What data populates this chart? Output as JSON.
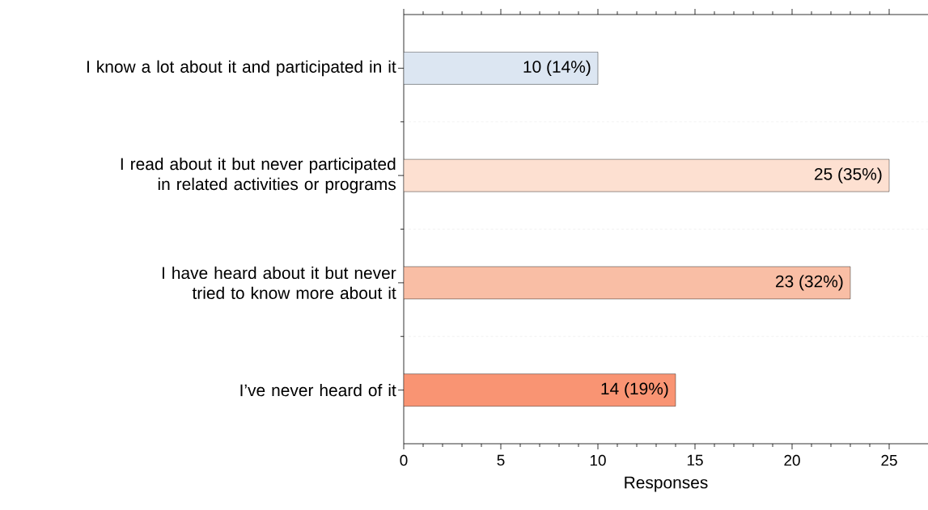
{
  "chart_data": {
    "type": "bar",
    "orientation": "horizontal",
    "xlabel": "Responses",
    "categories": [
      "I know a lot about it and participated in it",
      "I read about it but never participated in related activities or programs",
      "I have heard about it but never tried to know more about it",
      "I’ve never heard of it"
    ],
    "values": [
      10,
      25,
      23,
      14
    ],
    "value_labels": [
      "10 (14%)",
      "25 (35%)",
      "23 (32%)",
      "14 (19%)"
    ],
    "colors": [
      "#dce6f2",
      "#fde0d1",
      "#f9bea5",
      "#f99473"
    ],
    "xlim": [
      0,
      27
    ],
    "xticks": [
      0,
      5,
      10,
      15,
      20,
      25
    ],
    "grid": "y"
  }
}
